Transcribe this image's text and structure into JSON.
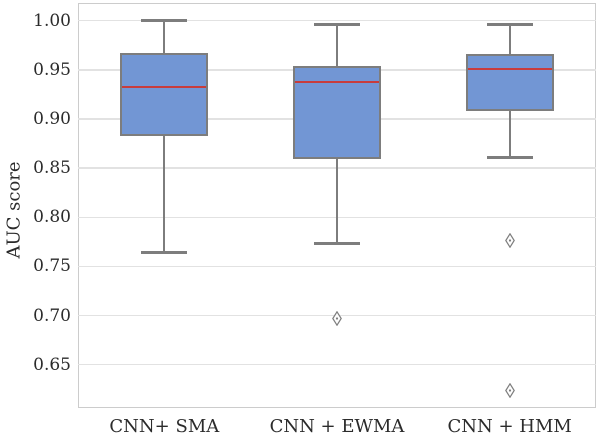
{
  "figure": {
    "background": "#ffffff"
  },
  "chart_data": {
    "type": "box",
    "title": "",
    "xlabel": "",
    "ylabel": "AUC score",
    "categories": [
      "CNN+ SMA",
      "CNN + EWMA",
      "CNN + HMM"
    ],
    "series": [
      {
        "name": "CNN+ SMA",
        "whisker_low": 0.764,
        "q1": 0.883,
        "median": 0.933,
        "q3": 0.967,
        "whisker_high": 1.0,
        "outliers": []
      },
      {
        "name": "CNN + EWMA",
        "whisker_low": 0.773,
        "q1": 0.859,
        "median": 0.938,
        "q3": 0.954,
        "whisker_high": 0.996,
        "outliers": [
          0.697
        ]
      },
      {
        "name": "CNN + HMM",
        "whisker_low": 0.861,
        "q1": 0.908,
        "median": 0.951,
        "q3": 0.966,
        "whisker_high": 0.996,
        "outliers": [
          0.776,
          0.624
        ]
      }
    ],
    "yticks": [
      1.0,
      0.95,
      0.9,
      0.85,
      0.8,
      0.75,
      0.7,
      0.65
    ],
    "ytick_format_decimals": 2,
    "ylim": [
      0.606,
      1.018
    ],
    "grid": true,
    "legend": false,
    "colors": {
      "box_fill": "#7296d4",
      "box_edge": "#7d7d7d",
      "whisker": "#7d7d7d",
      "median": "#c83c3c",
      "grid": "#e2e2e2",
      "spine": "#cccccc",
      "tick_text": "#2b2b2b",
      "outlier_edge": "#7d7d7d",
      "outlier_fill": "#fdfdfd"
    }
  }
}
